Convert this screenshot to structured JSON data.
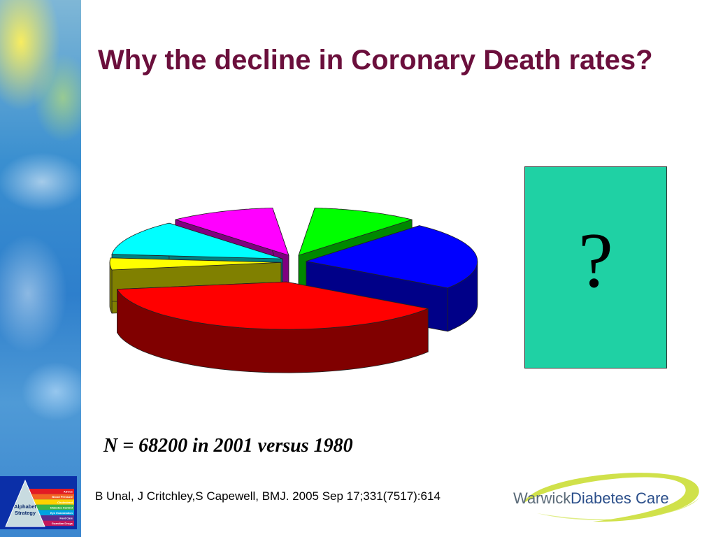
{
  "slide": {
    "title": "Why the decline in Coronary Death rates?",
    "question_mark": "?",
    "sample_info": "N = 68200 in 2001 versus 1980",
    "citation": "B Unal, J Critchley,S Capewell, BMJ. 2005 Sep 17;331(7517):614"
  },
  "logos": {
    "alphabet_line1": "Alphabet",
    "alphabet_line2": "Strategy",
    "alphabet_bands": [
      "Advice",
      "Blood Pressure",
      "Cholesterol",
      "Diabetes Control",
      "Eye Examination",
      "Foot Care",
      "Guardian Drugs"
    ],
    "warwick_word1": "Warwick",
    "warwick_word2": "Diabetes Care"
  },
  "colors": {
    "title": "#6b0f3c",
    "question_box": "#1fd1a4"
  },
  "chart_data": {
    "type": "pie",
    "style": "3d-exploded",
    "slices": [
      {
        "value": 10,
        "color": "#00ff00",
        "side": "#008800"
      },
      {
        "value": 23,
        "color": "#0000ff",
        "side": "#000088"
      },
      {
        "value": 38,
        "color": "#ff0000",
        "side": "#800000"
      },
      {
        "value": 4,
        "color": "#ffff00",
        "side": "#808000"
      },
      {
        "value": 12,
        "color": "#00ffff",
        "side": "#008080"
      },
      {
        "value": 10,
        "color": "#ff00ff",
        "side": "#800080"
      }
    ],
    "missing": {
      "value": 3,
      "note": "gap at top of pie"
    }
  }
}
